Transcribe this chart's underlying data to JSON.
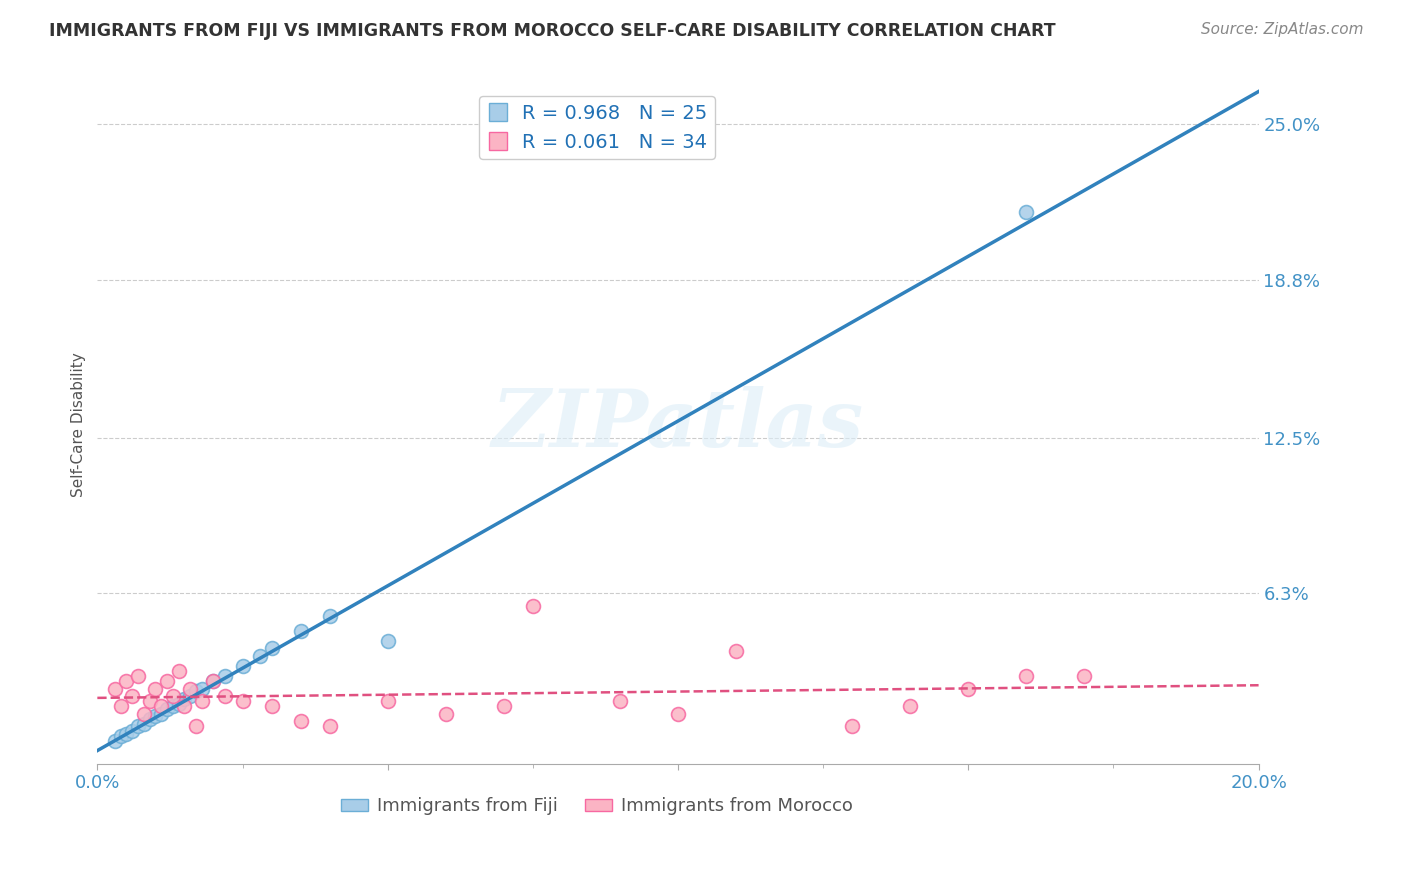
{
  "title": "IMMIGRANTS FROM FIJI VS IMMIGRANTS FROM MOROCCO SELF-CARE DISABILITY CORRELATION CHART",
  "source": "Source: ZipAtlas.com",
  "ylabel": "Self-Care Disability",
  "xlim": [
    0.0,
    0.2
  ],
  "ylim": [
    -0.005,
    0.265
  ],
  "xticks": [
    0.0,
    0.05,
    0.1,
    0.15,
    0.2
  ],
  "xtick_labels": [
    "0.0%",
    "",
    "",
    "",
    "20.0%"
  ],
  "ytick_labels": [
    "6.3%",
    "12.5%",
    "18.8%",
    "25.0%"
  ],
  "ytick_vals": [
    0.063,
    0.125,
    0.188,
    0.25
  ],
  "gridline_vals": [
    0.063,
    0.125,
    0.188,
    0.25
  ],
  "fiji_color": "#a8cde8",
  "fiji_edge_color": "#6baed6",
  "morocco_color": "#fbb4c4",
  "morocco_edge_color": "#f768a1",
  "fiji_line_color": "#3182bd",
  "morocco_line_color": "#e05080",
  "fiji_R": 0.968,
  "fiji_N": 25,
  "morocco_R": 0.061,
  "morocco_N": 34,
  "watermark": "ZIPatlas",
  "fiji_x": [
    0.003,
    0.004,
    0.005,
    0.006,
    0.007,
    0.008,
    0.009,
    0.01,
    0.011,
    0.012,
    0.013,
    0.014,
    0.015,
    0.016,
    0.017,
    0.018,
    0.02,
    0.022,
    0.025,
    0.028,
    0.03,
    0.035,
    0.04,
    0.05,
    0.16
  ],
  "fiji_y": [
    0.004,
    0.006,
    0.007,
    0.008,
    0.01,
    0.011,
    0.013,
    0.014,
    0.015,
    0.017,
    0.018,
    0.019,
    0.021,
    0.022,
    0.024,
    0.025,
    0.028,
    0.03,
    0.034,
    0.038,
    0.041,
    0.048,
    0.054,
    0.044,
    0.215
  ],
  "morocco_x": [
    0.003,
    0.004,
    0.005,
    0.006,
    0.007,
    0.008,
    0.009,
    0.01,
    0.011,
    0.012,
    0.013,
    0.014,
    0.015,
    0.016,
    0.017,
    0.018,
    0.02,
    0.022,
    0.025,
    0.03,
    0.035,
    0.04,
    0.05,
    0.06,
    0.07,
    0.075,
    0.09,
    0.1,
    0.11,
    0.13,
    0.14,
    0.15,
    0.16,
    0.17
  ],
  "morocco_y": [
    0.025,
    0.018,
    0.028,
    0.022,
    0.03,
    0.015,
    0.02,
    0.025,
    0.018,
    0.028,
    0.022,
    0.032,
    0.018,
    0.025,
    0.01,
    0.02,
    0.028,
    0.022,
    0.02,
    0.018,
    0.012,
    0.01,
    0.02,
    0.015,
    0.018,
    0.058,
    0.02,
    0.015,
    0.04,
    0.01,
    0.018,
    0.025,
    0.03,
    0.03
  ]
}
